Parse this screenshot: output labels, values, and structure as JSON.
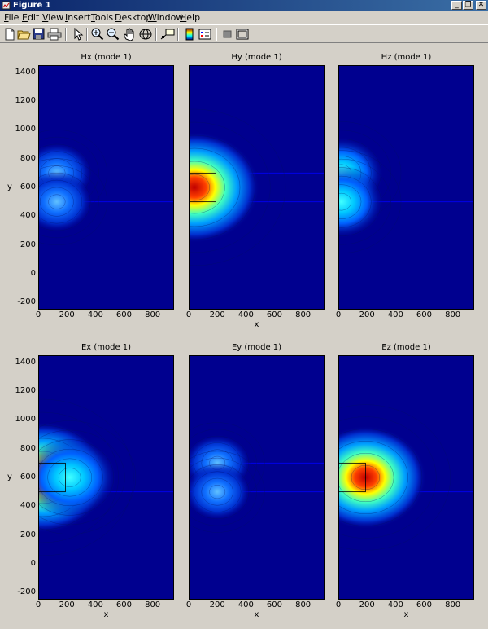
{
  "window": {
    "title": "Figure 1",
    "controls": [
      "_",
      "❐",
      "✕"
    ]
  },
  "menu": [
    "File",
    "Edit",
    "View",
    "Insert",
    "Tools",
    "Desktop",
    "Window",
    "Help"
  ],
  "toolbar": [
    "new-figure",
    "open-file",
    "save-figure",
    "print-figure",
    "edit-plot",
    "zoom-in",
    "zoom-out",
    "pan",
    "rotate-3d",
    "data-cursor",
    "insert-colorbar",
    "insert-legend",
    "hide-plot-tools",
    "show-plot-tools"
  ],
  "axes": {
    "y_ticks": [
      "1400",
      "1200",
      "1000",
      "800",
      "600",
      "400",
      "200",
      "0",
      "-200"
    ],
    "x_ticks": [
      "0",
      "200",
      "400",
      "600",
      "800"
    ],
    "x_label": "x",
    "y_label": "y"
  },
  "plots": [
    {
      "title": "Hx (mode 1)"
    },
    {
      "title": "Hy (mode 1)"
    },
    {
      "title": "Hz (mode 1)"
    },
    {
      "title": "Ex (mode 1)"
    },
    {
      "title": "Ey (mode 1)"
    },
    {
      "title": "Ez (mode 1)"
    }
  ],
  "chart_data": [
    {
      "type": "heatmap",
      "title": "Hx (mode 1)",
      "xlabel": "",
      "ylabel": "y",
      "xlim": [
        0,
        950
      ],
      "ylim": [
        -250,
        1450
      ],
      "hotspots": [
        {
          "x": 130,
          "y": 700,
          "strength": 0.35
        },
        {
          "x": 130,
          "y": 500,
          "strength": 0.35
        }
      ],
      "grid": false
    },
    {
      "type": "heatmap",
      "title": "Hy (mode 1)",
      "xlabel": "x",
      "ylabel": "",
      "xlim": [
        0,
        950
      ],
      "ylim": [
        -250,
        1450
      ],
      "hotspots": [
        {
          "x": 40,
          "y": 600,
          "strength": 1.0
        }
      ],
      "grid": false
    },
    {
      "type": "heatmap",
      "title": "Hz (mode 1)",
      "xlabel": "",
      "ylabel": "",
      "xlim": [
        0,
        950
      ],
      "ylim": [
        -250,
        1450
      ],
      "hotspots": [
        {
          "x": 20,
          "y": 700,
          "strength": 0.5
        },
        {
          "x": 20,
          "y": 500,
          "strength": 0.5
        }
      ],
      "grid": false
    },
    {
      "type": "heatmap",
      "title": "Ex (mode 1)",
      "xlabel": "x",
      "ylabel": "y",
      "xlim": [
        0,
        950
      ],
      "ylim": [
        -250,
        1450
      ],
      "hotspots": [
        {
          "x": 30,
          "y": 600,
          "strength": 1.0
        },
        {
          "x": 220,
          "y": 600,
          "strength": 0.6
        }
      ],
      "grid": false
    },
    {
      "type": "heatmap",
      "title": "Ey (mode 1)",
      "xlabel": "x",
      "ylabel": "",
      "xlim": [
        0,
        950
      ],
      "ylim": [
        -250,
        1450
      ],
      "hotspots": [
        {
          "x": 200,
          "y": 700,
          "strength": 0.3
        },
        {
          "x": 200,
          "y": 500,
          "strength": 0.3
        }
      ],
      "grid": false
    },
    {
      "type": "heatmap",
      "title": "Ez (mode 1)",
      "xlabel": "x",
      "ylabel": "",
      "xlim": [
        0,
        950
      ],
      "ylim": [
        -250,
        1450
      ],
      "hotspots": [
        {
          "x": 190,
          "y": 600,
          "strength": 0.9
        }
      ],
      "grid": false
    }
  ]
}
